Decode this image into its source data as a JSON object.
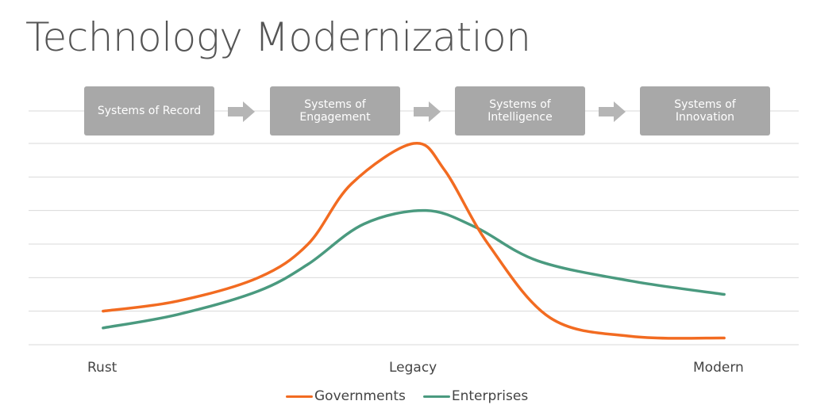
{
  "title": "Technology Modernization",
  "stages": [
    {
      "label": "Systems of Record"
    },
    {
      "label": "Systems of\nEngagement"
    },
    {
      "label": "Systems of\nIntelligence"
    },
    {
      "label": "Systems of\nInnovation"
    }
  ],
  "colors": {
    "stage_bg": "#a8a8a8",
    "arrow": "#b5b5b5",
    "grid": "#d9d9d9"
  },
  "chart_data": {
    "type": "line",
    "xlabel": "",
    "ylabel": "",
    "tick_labels": [
      {
        "label": "Rust",
        "x": 0
      },
      {
        "label": "Legacy",
        "x": 50
      },
      {
        "label": "Modern",
        "x": 100
      }
    ],
    "xlim": [
      -12,
      112
    ],
    "ylim": [
      0,
      6
    ],
    "grid": true,
    "legend_position": "bottom-center",
    "series": [
      {
        "name": "Governments",
        "color": "#f26b21",
        "x": [
          0,
          12,
          25,
          33,
          40,
          50,
          55,
          62,
          72,
          85,
          100
        ],
        "y": [
          1.0,
          1.3,
          2.0,
          3.0,
          4.8,
          6.0,
          5.2,
          3.0,
          0.8,
          0.25,
          0.2
        ]
      },
      {
        "name": "Enterprises",
        "color": "#4a9a7f",
        "x": [
          0,
          12,
          25,
          33,
          42,
          52,
          60,
          70,
          85,
          100
        ],
        "y": [
          0.5,
          0.9,
          1.6,
          2.4,
          3.6,
          4.0,
          3.5,
          2.5,
          1.9,
          1.5
        ]
      }
    ]
  }
}
